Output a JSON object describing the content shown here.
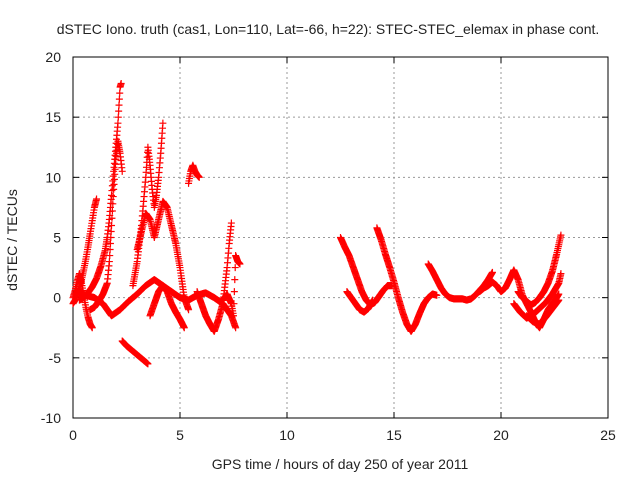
{
  "chart_data": {
    "type": "scatter",
    "title": "dSTEC Iono. truth (cas1, Lon=110, Lat=-66, h=22): STEC-STEC_elemax in phase cont.",
    "xlabel": "GPS time / hours of day 250 of year 2011",
    "ylabel": "dSTEC  / TECUs",
    "xlim": [
      0,
      25
    ],
    "ylim": [
      -10,
      20
    ],
    "xticks": [
      0,
      5,
      10,
      15,
      20,
      25
    ],
    "yticks": [
      -10,
      -5,
      0,
      5,
      10,
      15,
      20
    ],
    "grid": true,
    "marker": "plus",
    "color": "#ff0000",
    "series": [
      {
        "tracks": [
          [
            [
              0.0,
              0.0
            ],
            [
              0.1,
              0.6
            ],
            [
              0.2,
              1.4
            ],
            [
              0.3,
              2.0
            ],
            [
              0.4,
              1.2
            ],
            [
              0.5,
              0.2
            ],
            [
              0.6,
              -0.8
            ],
            [
              0.7,
              -1.6
            ],
            [
              0.8,
              -2.2
            ],
            [
              0.9,
              -2.5
            ]
          ],
          [
            [
              0.0,
              -0.5
            ],
            [
              0.1,
              -0.2
            ],
            [
              0.2,
              0.3
            ],
            [
              0.3,
              0.8
            ],
            [
              0.4,
              1.5
            ],
            [
              0.5,
              2.3
            ],
            [
              0.6,
              3.2
            ],
            [
              0.7,
              4.2
            ],
            [
              0.8,
              5.3
            ],
            [
              0.9,
              6.4
            ],
            [
              1.0,
              7.5
            ],
            [
              1.1,
              8.2
            ]
          ],
          [
            [
              0.3,
              -0.2
            ],
            [
              0.5,
              0.0
            ],
            [
              0.7,
              0.4
            ],
            [
              0.9,
              0.9
            ],
            [
              1.1,
              1.6
            ],
            [
              1.3,
              2.6
            ],
            [
              1.5,
              3.9
            ],
            [
              1.6,
              5.0
            ],
            [
              1.7,
              6.5
            ],
            [
              1.8,
              8.5
            ],
            [
              1.9,
              10.5
            ],
            [
              2.0,
              12.5
            ],
            [
              2.1,
              14.5
            ],
            [
              2.15,
              16.0
            ],
            [
              2.2,
              17.5
            ],
            [
              2.25,
              17.8
            ]
          ],
          [
            [
              0.8,
              -1.0
            ],
            [
              1.0,
              -0.8
            ],
            [
              1.2,
              -0.3
            ],
            [
              1.4,
              0.3
            ],
            [
              1.6,
              1.2
            ],
            [
              1.7,
              3.0
            ],
            [
              1.8,
              6.0
            ],
            [
              1.9,
              9.0
            ],
            [
              2.0,
              11.5
            ],
            [
              2.1,
              13.0
            ],
            [
              2.2,
              12.0
            ],
            [
              2.3,
              10.5
            ]
          ],
          [
            [
              0.2,
              0.5
            ],
            [
              0.6,
              0.2
            ],
            [
              1.0,
              0.0
            ],
            [
              1.4,
              -0.5
            ],
            [
              1.8,
              -1.5
            ],
            [
              2.2,
              -1.0
            ],
            [
              2.6,
              -0.3
            ],
            [
              3.0,
              0.3
            ],
            [
              3.4,
              1.0
            ],
            [
              3.8,
              1.5
            ],
            [
              4.2,
              1.0
            ],
            [
              4.6,
              0.5
            ],
            [
              5.0,
              0.0
            ],
            [
              5.4,
              -0.2
            ],
            [
              5.8,
              0.2
            ],
            [
              6.2,
              0.4
            ],
            [
              6.6,
              0.0
            ],
            [
              7.0,
              -0.5
            ],
            [
              7.4,
              -1.5
            ],
            [
              7.6,
              -2.5
            ]
          ],
          [
            [
              2.3,
              -3.6
            ],
            [
              2.5,
              -4.0
            ],
            [
              2.7,
              -4.3
            ],
            [
              2.9,
              -4.6
            ],
            [
              3.1,
              -4.9
            ],
            [
              3.3,
              -5.2
            ],
            [
              3.5,
              -5.5
            ]
          ],
          [
            [
              2.8,
              1.0
            ],
            [
              3.0,
              3.0
            ],
            [
              3.2,
              6.0
            ],
            [
              3.4,
              10.0
            ],
            [
              3.5,
              12.5
            ],
            [
              3.6,
              11.0
            ],
            [
              3.7,
              9.0
            ],
            [
              3.8,
              7.5
            ],
            [
              3.9,
              8.5
            ],
            [
              4.0,
              10.0
            ],
            [
              4.1,
              12.0
            ],
            [
              4.2,
              14.5
            ]
          ],
          [
            [
              3.0,
              4.0
            ],
            [
              3.2,
              5.5
            ],
            [
              3.4,
              7.0
            ],
            [
              3.6,
              6.5
            ],
            [
              3.8,
              5.0
            ],
            [
              4.0,
              6.5
            ],
            [
              4.2,
              8.0
            ],
            [
              4.4,
              7.5
            ],
            [
              4.6,
              6.0
            ],
            [
              4.8,
              4.5
            ],
            [
              5.0,
              2.5
            ],
            [
              5.2,
              0.0
            ],
            [
              5.4,
              -1.0
            ]
          ],
          [
            [
              3.6,
              -1.5
            ],
            [
              3.8,
              -0.5
            ],
            [
              4.0,
              0.5
            ],
            [
              4.2,
              1.0
            ],
            [
              4.4,
              0.5
            ],
            [
              4.6,
              -0.5
            ],
            [
              4.8,
              -1.2
            ],
            [
              5.0,
              -1.8
            ],
            [
              5.2,
              -2.5
            ]
          ],
          [
            [
              5.4,
              9.5
            ],
            [
              5.5,
              10.5
            ],
            [
              5.6,
              11.0
            ],
            [
              5.7,
              10.5
            ],
            [
              5.8,
              10.2
            ],
            [
              5.9,
              10.0
            ]
          ],
          [
            [
              5.8,
              0.5
            ],
            [
              6.0,
              -0.5
            ],
            [
              6.2,
              -1.5
            ],
            [
              6.4,
              -2.2
            ],
            [
              6.6,
              -2.8
            ],
            [
              6.8,
              -1.8
            ],
            [
              7.0,
              -0.5
            ],
            [
              7.2,
              2.5
            ],
            [
              7.3,
              4.5
            ],
            [
              7.4,
              6.2
            ]
          ],
          [
            [
              7.0,
              -0.2
            ],
            [
              7.2,
              0.3
            ],
            [
              7.4,
              -0.5
            ],
            [
              7.5,
              -1.5
            ],
            [
              7.6,
              3.5
            ],
            [
              7.7,
              3.0
            ],
            [
              7.8,
              2.8
            ]
          ],
          [
            [
              12.5,
              5.0
            ],
            [
              12.7,
              4.2
            ],
            [
              12.9,
              3.5
            ],
            [
              13.1,
              2.5
            ],
            [
              13.3,
              1.5
            ],
            [
              13.5,
              0.5
            ],
            [
              13.7,
              -0.2
            ],
            [
              13.9,
              -0.6
            ],
            [
              14.1,
              -0.4
            ],
            [
              14.3,
              0.1
            ],
            [
              14.5,
              0.6
            ],
            [
              14.7,
              1.0
            ],
            [
              14.9,
              1.0
            ]
          ],
          [
            [
              12.8,
              0.5
            ],
            [
              13.0,
              0.0
            ],
            [
              13.2,
              -0.5
            ],
            [
              13.4,
              -1.0
            ],
            [
              13.6,
              -1.2
            ],
            [
              13.8,
              -0.9
            ],
            [
              14.0,
              -0.2
            ]
          ],
          [
            [
              14.2,
              5.8
            ],
            [
              14.4,
              4.8
            ],
            [
              14.6,
              3.6
            ],
            [
              14.8,
              2.5
            ],
            [
              15.0,
              1.3
            ],
            [
              15.2,
              0.0
            ],
            [
              15.4,
              -1.2
            ],
            [
              15.6,
              -2.2
            ],
            [
              15.8,
              -2.8
            ],
            [
              16.0,
              -2.2
            ],
            [
              16.2,
              -1.3
            ],
            [
              16.4,
              -0.5
            ],
            [
              16.6,
              0.0
            ],
            [
              16.8,
              0.3
            ],
            [
              17.0,
              0.2
            ]
          ],
          [
            [
              16.6,
              2.8
            ],
            [
              16.8,
              2.2
            ],
            [
              17.0,
              1.5
            ],
            [
              17.2,
              0.8
            ],
            [
              17.4,
              0.3
            ],
            [
              17.6,
              0.0
            ],
            [
              17.8,
              -0.1
            ],
            [
              18.0,
              -0.1
            ],
            [
              18.2,
              -0.1
            ],
            [
              18.4,
              -0.2
            ],
            [
              18.6,
              -0.1
            ],
            [
              18.8,
              0.2
            ],
            [
              19.0,
              0.6
            ],
            [
              19.2,
              1.0
            ],
            [
              19.4,
              1.5
            ],
            [
              19.6,
              2.1
            ]
          ],
          [
            [
              19.0,
              0.5
            ],
            [
              19.2,
              0.8
            ],
            [
              19.4,
              1.0
            ],
            [
              19.6,
              1.3
            ],
            [
              19.8,
              1.0
            ],
            [
              20.0,
              0.5
            ],
            [
              20.2,
              0.8
            ],
            [
              20.4,
              1.5
            ],
            [
              20.6,
              2.3
            ],
            [
              20.8,
              1.5
            ],
            [
              21.0,
              0.2
            ],
            [
              21.2,
              -0.5
            ],
            [
              21.4,
              -1.2
            ],
            [
              21.6,
              -2.0
            ],
            [
              21.8,
              -2.5
            ],
            [
              22.0,
              -1.8
            ],
            [
              22.2,
              -1.0
            ],
            [
              22.4,
              -0.5
            ],
            [
              22.6,
              0.0
            ],
            [
              22.7,
              0.3
            ]
          ],
          [
            [
              20.8,
              0.5
            ],
            [
              21.0,
              0.0
            ],
            [
              21.2,
              -0.3
            ],
            [
              21.4,
              -0.6
            ],
            [
              21.6,
              -0.4
            ],
            [
              21.8,
              0.0
            ],
            [
              22.0,
              0.5
            ],
            [
              22.2,
              1.2
            ],
            [
              22.4,
              2.2
            ],
            [
              22.6,
              3.6
            ],
            [
              22.8,
              5.2
            ]
          ],
          [
            [
              20.6,
              -0.5
            ],
            [
              20.9,
              -1.2
            ],
            [
              21.2,
              -1.7
            ],
            [
              21.5,
              -1.4
            ],
            [
              21.8,
              -0.9
            ],
            [
              22.1,
              -0.4
            ],
            [
              22.4,
              0.3
            ],
            [
              22.7,
              1.2
            ],
            [
              22.8,
              2.0
            ]
          ],
          [
            [
              21.2,
              -1.5
            ],
            [
              21.5,
              -2.0
            ],
            [
              21.8,
              -2.2
            ],
            [
              22.1,
              -1.6
            ],
            [
              22.4,
              -0.9
            ],
            [
              22.7,
              -0.2
            ]
          ]
        ]
      }
    ]
  }
}
